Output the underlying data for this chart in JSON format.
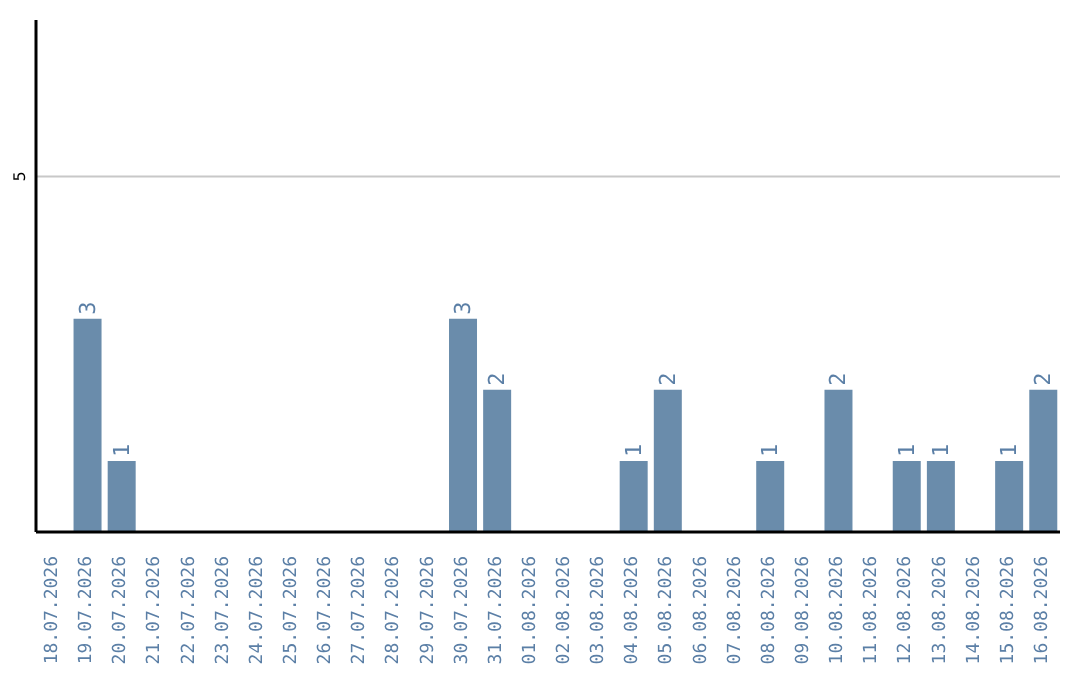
{
  "chart_data": {
    "type": "bar",
    "categories": [
      "18.07.2026",
      "19.07.2026",
      "20.07.2026",
      "21.07.2026",
      "22.07.2026",
      "23.07.2026",
      "24.07.2026",
      "25.07.2026",
      "26.07.2026",
      "27.07.2026",
      "28.07.2026",
      "29.07.2026",
      "30.07.2026",
      "31.07.2026",
      "01.08.2026",
      "02.08.2026",
      "03.08.2026",
      "04.08.2026",
      "05.08.2026",
      "06.08.2026",
      "07.08.2026",
      "08.08.2026",
      "09.08.2026",
      "10.08.2026",
      "11.08.2026",
      "12.08.2026",
      "13.08.2026",
      "14.08.2026",
      "15.08.2026",
      "16.08.2026"
    ],
    "values": [
      null,
      3,
      1,
      null,
      null,
      null,
      null,
      null,
      null,
      null,
      null,
      null,
      3,
      2,
      null,
      null,
      null,
      1,
      2,
      null,
      null,
      1,
      null,
      2,
      null,
      1,
      1,
      null,
      1,
      2
    ],
    "color": "#6a8cab",
    "ylim": [
      0,
      7.2
    ],
    "yticks": [
      5
    ],
    "grid": "y",
    "data_labels": true
  }
}
